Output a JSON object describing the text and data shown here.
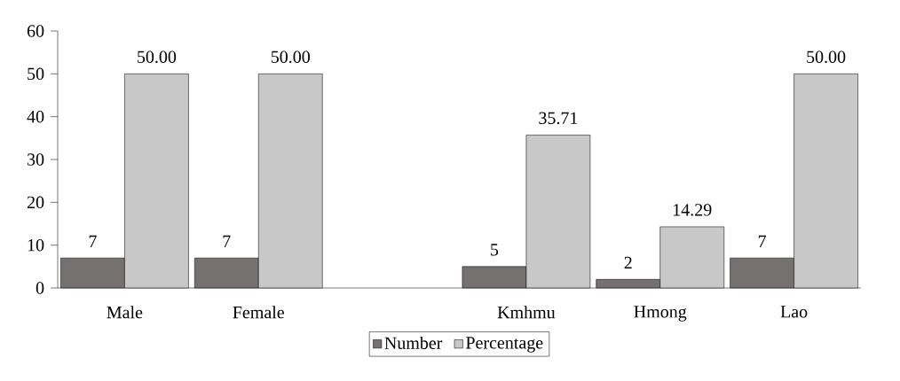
{
  "chart_data": {
    "type": "bar",
    "categories": [
      "Male",
      "Female",
      null,
      "Kmhmu",
      "Hmong",
      "Lao"
    ],
    "series": [
      {
        "name": "Number",
        "color": "#767171",
        "values": [
          7,
          7,
          null,
          5,
          2,
          7
        ],
        "value_labels": [
          "7",
          "7",
          null,
          "5",
          "2",
          "7"
        ]
      },
      {
        "name": "Percentage",
        "color": "#c8c8c8",
        "values": [
          50,
          50,
          null,
          35.71,
          14.29,
          50
        ],
        "value_labels": [
          "50.00",
          "50.00",
          null,
          "35.71",
          "14.29",
          "50.00"
        ]
      }
    ],
    "ylim": [
      0,
      60
    ],
    "yticks": [
      0,
      10,
      20,
      30,
      40,
      50,
      60
    ],
    "legend": "bottom"
  }
}
